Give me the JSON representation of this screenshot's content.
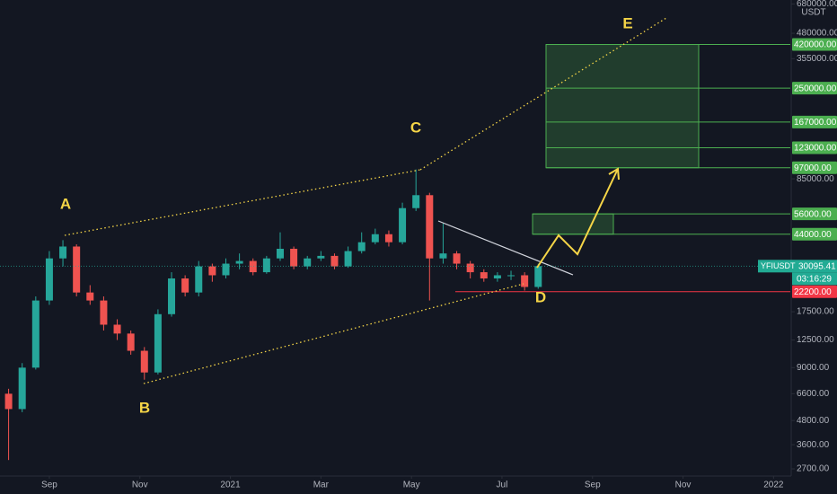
{
  "chart_data": {
    "type": "candlestick",
    "log_scale": true,
    "quote": "USDT",
    "xlim": [
      -1.09,
      16.37
    ],
    "xticks": [
      {
        "value": 0,
        "label": "Sep"
      },
      {
        "value": 2,
        "label": "Nov"
      },
      {
        "value": 4,
        "label": "2021"
      },
      {
        "value": 6,
        "label": "Mar"
      },
      {
        "value": 8,
        "label": "May"
      },
      {
        "value": 10,
        "label": "Jul"
      },
      {
        "value": 12,
        "label": "Sep"
      },
      {
        "value": 14,
        "label": "Nov"
      },
      {
        "value": 16,
        "label": "2022"
      }
    ],
    "ylim": [
      2480,
      713000
    ],
    "yticks": [
      {
        "value": 2700,
        "label": "2700.00"
      },
      {
        "value": 3600,
        "label": "3600.00"
      },
      {
        "value": 4800,
        "label": "4800.00"
      },
      {
        "value": 6600,
        "label": "6600.00"
      },
      {
        "value": 9000,
        "label": "9000.00"
      },
      {
        "value": 12500,
        "label": "12500.00"
      },
      {
        "value": 17500,
        "label": "17500.00"
      },
      {
        "value": 85000,
        "label": "85000.00"
      },
      {
        "value": 355000,
        "label": "355000.00"
      },
      {
        "value": 480000,
        "label": "480000.00"
      },
      {
        "value": 680000,
        "label": "680000.00"
      }
    ],
    "up_color": "#26a69a",
    "down_color": "#ef5350",
    "x": [
      -0.9,
      -0.6,
      -0.3,
      0.0,
      0.3,
      0.6,
      0.9,
      1.2,
      1.5,
      1.8,
      2.1,
      2.4,
      2.7,
      3.0,
      3.3,
      3.6,
      3.9,
      4.2,
      4.5,
      4.8,
      5.1,
      5.4,
      5.7,
      6.0,
      6.3,
      6.6,
      6.9,
      7.2,
      7.5,
      7.8,
      8.1,
      8.4,
      8.7,
      9.0,
      9.3,
      9.6,
      9.9,
      10.2,
      10.5,
      10.8
    ],
    "open": [
      6600,
      5500,
      9000,
      20000,
      33000,
      38000,
      22000,
      20000,
      15000,
      13500,
      11000,
      8500,
      17000,
      26000,
      22000,
      30000,
      27000,
      31000,
      32000,
      28000,
      33000,
      37000,
      30000,
      33000,
      34000,
      30000,
      36000,
      40000,
      44000,
      40000,
      60000,
      70000,
      33000,
      35000,
      31000,
      28000,
      26000,
      27000,
      27000,
      23500
    ],
    "high": [
      7000,
      9500,
      21000,
      36000,
      41000,
      39000,
      24000,
      21000,
      16000,
      14000,
      11500,
      18000,
      28000,
      27000,
      32000,
      31000,
      33000,
      35000,
      33000,
      34000,
      45000,
      38000,
      34000,
      36000,
      35000,
      38000,
      45000,
      47000,
      46000,
      64000,
      95000,
      72000,
      50000,
      36000,
      32000,
      29000,
      28000,
      28500,
      28000,
      31000
    ],
    "low": [
      3000,
      5300,
      8800,
      19000,
      30000,
      21000,
      19000,
      14000,
      12500,
      10500,
      7800,
      8300,
      16500,
      21000,
      21000,
      25000,
      26000,
      29000,
      27000,
      27500,
      32000,
      29000,
      29000,
      32000,
      29000,
      29500,
      35000,
      39000,
      38000,
      39000,
      58000,
      20000,
      31000,
      29000,
      26000,
      25000,
      25000,
      25500,
      22500,
      23000
    ],
    "close": [
      5500,
      9000,
      20000,
      33000,
      38000,
      22000,
      20000,
      15000,
      13500,
      11000,
      8500,
      17000,
      26000,
      22000,
      30000,
      27000,
      31000,
      32000,
      28000,
      33000,
      37000,
      30000,
      33000,
      34000,
      30000,
      36000,
      40000,
      44000,
      40000,
      60000,
      70000,
      33000,
      35000,
      31000,
      28000,
      26000,
      27000,
      27000,
      23500,
      30095.41
    ],
    "levels": [
      {
        "value": 420000,
        "label": "420000.00",
        "color": "#4caf50"
      },
      {
        "value": 250000,
        "label": "250000.00",
        "color": "#4caf50"
      },
      {
        "value": 167000,
        "label": "167000.00",
        "color": "#4caf50"
      },
      {
        "value": 123000,
        "label": "123000.00",
        "color": "#4caf50"
      },
      {
        "value": 97000,
        "label": "97000.00",
        "color": "#4caf50"
      },
      {
        "value": 56000,
        "label": "56000.00",
        "color": "#4caf50"
      },
      {
        "value": 44000,
        "label": "44000.00",
        "color": "#4caf50"
      },
      {
        "value": 22200,
        "label": "22200.00",
        "color": "#f23645"
      }
    ],
    "current": {
      "symbol": "YFIUSDT",
      "value": 30095.41,
      "label": "30095.41",
      "countdown": "03:16:29",
      "color": "#22ab94"
    },
    "waves": [
      "A",
      "B",
      "C",
      "D",
      "E"
    ]
  }
}
